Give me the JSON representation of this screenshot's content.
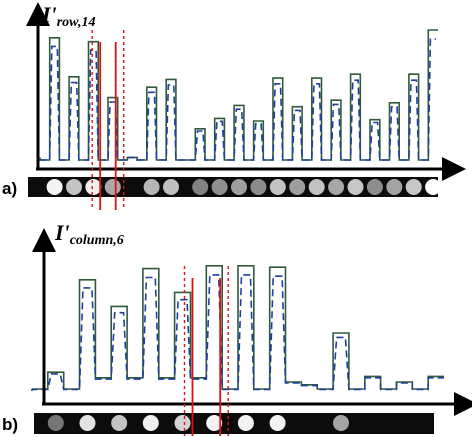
{
  "figure": {
    "panel_a_label": "a)",
    "panel_b_label": "b)"
  },
  "colors": {
    "solid_trace": "#2f5a3c",
    "dashed_trace": "#1f3f9e",
    "marker_solid": "#e01010",
    "marker_dotted": "#e01010",
    "axis": "#000000"
  },
  "chart_data": [
    {
      "type": "line",
      "ylabel_main": "I'",
      "ylabel_sub": "row,14",
      "xlabel": "",
      "baseline": 0.02,
      "series": [
        {
          "values": [
            0.0,
            0.94,
            0.0,
            0.64,
            0.0,
            0.91,
            0.0,
            0.48,
            0.0,
            0.02,
            0.0,
            0.56,
            0.0,
            0.62,
            0.0,
            0.0,
            0.24,
            0.0,
            0.32,
            0.0,
            0.42,
            0.0,
            0.3,
            0.0,
            0.63,
            0.0,
            0.41,
            0.0,
            0.63,
            0.0,
            0.46,
            0.0,
            0.66,
            0.0,
            0.31,
            0.0,
            0.44,
            0.0,
            0.66,
            0.0,
            1.0
          ]
        }
      ],
      "marked_column": 6
    },
    {
      "type": "line",
      "ylabel_main": "I'",
      "ylabel_sub": "column,6",
      "xlabel": "",
      "baseline": 0.05,
      "series": [
        {
          "values": [
            0.05,
            0.17,
            0.05,
            0.83,
            0.13,
            0.64,
            0.13,
            0.91,
            0.13,
            0.74,
            0.13,
            0.93,
            0.05,
            0.93,
            0.05,
            0.92,
            0.1,
            0.08,
            0.05,
            0.45,
            0.05,
            0.14,
            0.05,
            0.1,
            0.05,
            0.14
          ]
        }
      ],
      "marked_column": 10
    }
  ]
}
